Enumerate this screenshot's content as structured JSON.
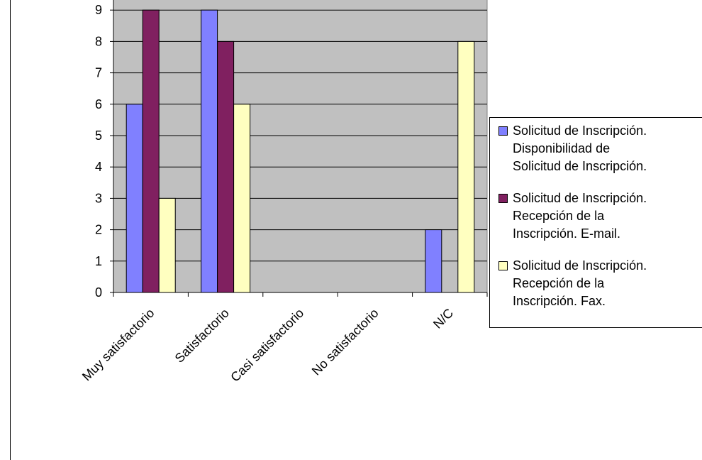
{
  "chart_data": {
    "type": "bar",
    "categories": [
      "Muy satisfactorio",
      "Satisfactorio",
      "Casi satisfactorio",
      "No satisfactorio",
      "N/C"
    ],
    "series": [
      {
        "name": "Solicitud de Inscripción. Disponibilidad de Solicitud de Inscripción.",
        "name_lines": [
          "Solicitud de Inscripción.",
          "Disponibilidad de",
          "Solicitud de Inscripción."
        ],
        "values": [
          6,
          9,
          0,
          0,
          2
        ],
        "color": "#8080ff"
      },
      {
        "name": "Solicitud de Inscripción. Recepción de la Inscripción. E-mail.",
        "name_lines": [
          "Solicitud de Inscripción.",
          "Recepción de la",
          "Inscripción. E-mail."
        ],
        "values": [
          9,
          8,
          0,
          0,
          0
        ],
        "color": "#802060"
      },
      {
        "name": "Solicitud de Inscripción. Recepción de la Inscripción. Fax.",
        "name_lines": [
          "Solicitud de Inscripción.",
          "Recepción de la",
          "Inscripción. Fax."
        ],
        "values": [
          3,
          6,
          0,
          0,
          8
        ],
        "color": "#ffffc0"
      }
    ],
    "yticks": [
      "0",
      "1",
      "2",
      "3",
      "4",
      "5",
      "6",
      "7",
      "8",
      "9"
    ],
    "ylim": [
      0,
      9
    ],
    "grid": true,
    "plot_background": "#c0c0c0",
    "legend_position": "right"
  }
}
